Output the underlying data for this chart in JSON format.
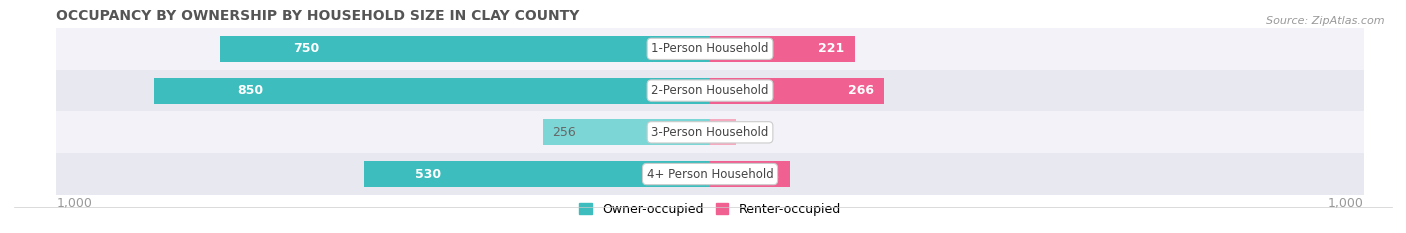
{
  "title": "OCCUPANCY BY OWNERSHIP BY HOUSEHOLD SIZE IN CLAY COUNTY",
  "source": "Source: ZipAtlas.com",
  "categories": [
    "1-Person Household",
    "2-Person Household",
    "3-Person Household",
    "4+ Person Household"
  ],
  "owner_values": [
    750,
    850,
    256,
    530
  ],
  "renter_values": [
    221,
    266,
    40,
    122
  ],
  "owner_color_dark": "#3DBDBD",
  "owner_color_light": "#7DD6D6",
  "renter_color_dark": "#F06090",
  "renter_color_light": "#F5AABF",
  "row_bg_odd": "#F2F2F8",
  "row_bg_even": "#E8E8F0",
  "axis_max": 1000,
  "title_color": "#555555",
  "label_color_white": "#FFFFFF",
  "label_color_dark": "#666666",
  "legend_owner": "Owner-occupied",
  "legend_renter": "Renter-occupied",
  "owner_threshold": 400,
  "renter_threshold": 100
}
